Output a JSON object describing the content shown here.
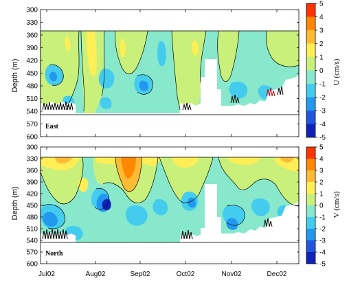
{
  "chart_data": [
    {
      "type": "heatmap",
      "panel_label": "East",
      "ylabel": "Depth (m)",
      "ylim": [
        600,
        300
      ],
      "yticks": [
        300,
        330,
        360,
        390,
        420,
        450,
        480,
        510,
        540,
        570,
        600
      ],
      "xticks": [
        "Jul02",
        "Aug02",
        "Sep02",
        "Oct02",
        "Nov02",
        "Dec02"
      ],
      "colorbar": {
        "label": "U (cm/s)",
        "levels": [
          5,
          4,
          3,
          2,
          1,
          0,
          -1,
          -2,
          -3,
          -4,
          -5
        ],
        "colors": [
          "#cc0000",
          "#ff3300",
          "#ff8800",
          "#ffbb33",
          "#ffee55",
          "#c8f07a",
          "#88e8cc",
          "#44ccee",
          "#2299ee",
          "#2255dd",
          "#1122bb",
          "#000088"
        ]
      }
    },
    {
      "type": "heatmap",
      "panel_label": "North",
      "ylabel": "Depth (m)",
      "ylim": [
        600,
        300
      ],
      "yticks": [
        300,
        330,
        360,
        390,
        420,
        450,
        480,
        510,
        540,
        570,
        600
      ],
      "xticks": [
        "Jul02",
        "Aug02",
        "Sep02",
        "Oct02",
        "Nov02",
        "Dec02"
      ],
      "colorbar": {
        "label": "V (cm/s)",
        "levels": [
          5,
          4,
          3,
          2,
          1,
          0,
          -1,
          -2,
          -3,
          -4,
          -5
        ],
        "colors": [
          "#cc0000",
          "#ff3300",
          "#ff8800",
          "#ffbb33",
          "#ffee55",
          "#c8f07a",
          "#88e8cc",
          "#44ccee",
          "#2299ee",
          "#2255dd",
          "#1122bb",
          "#000088"
        ]
      }
    }
  ]
}
